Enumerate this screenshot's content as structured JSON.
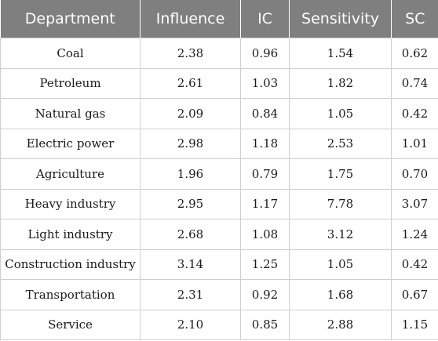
{
  "table": {
    "headers": [
      "Department",
      "Influence",
      "IC",
      "Sensitivity",
      "SC"
    ],
    "rows": [
      [
        "Coal",
        "2.38",
        "0.96",
        "1.54",
        "0.62"
      ],
      [
        "Petroleum",
        "2.61",
        "1.03",
        "1.82",
        "0.74"
      ],
      [
        "Natural gas",
        "2.09",
        "0.84",
        "1.05",
        "0.42"
      ],
      [
        "Electric power",
        "2.98",
        "1.18",
        "2.53",
        "1.01"
      ],
      [
        "Agriculture",
        "1.96",
        "0.79",
        "1.75",
        "0.70"
      ],
      [
        "Heavy industry",
        "2.95",
        "1.17",
        "7.78",
        "3.07"
      ],
      [
        "Light industry",
        "2.68",
        "1.08",
        "3.12",
        "1.24"
      ],
      [
        "Construction industry",
        "3.14",
        "1.25",
        "1.05",
        "0.42"
      ],
      [
        "Transportation",
        "2.31",
        "0.92",
        "1.68",
        "0.67"
      ],
      [
        "Service",
        "2.10",
        "0.85",
        "2.88",
        "1.15"
      ]
    ]
  },
  "colors": {
    "header_background": "#7f7f80",
    "header_text": "#ffffff",
    "grid_line": "#cfcfcf"
  }
}
